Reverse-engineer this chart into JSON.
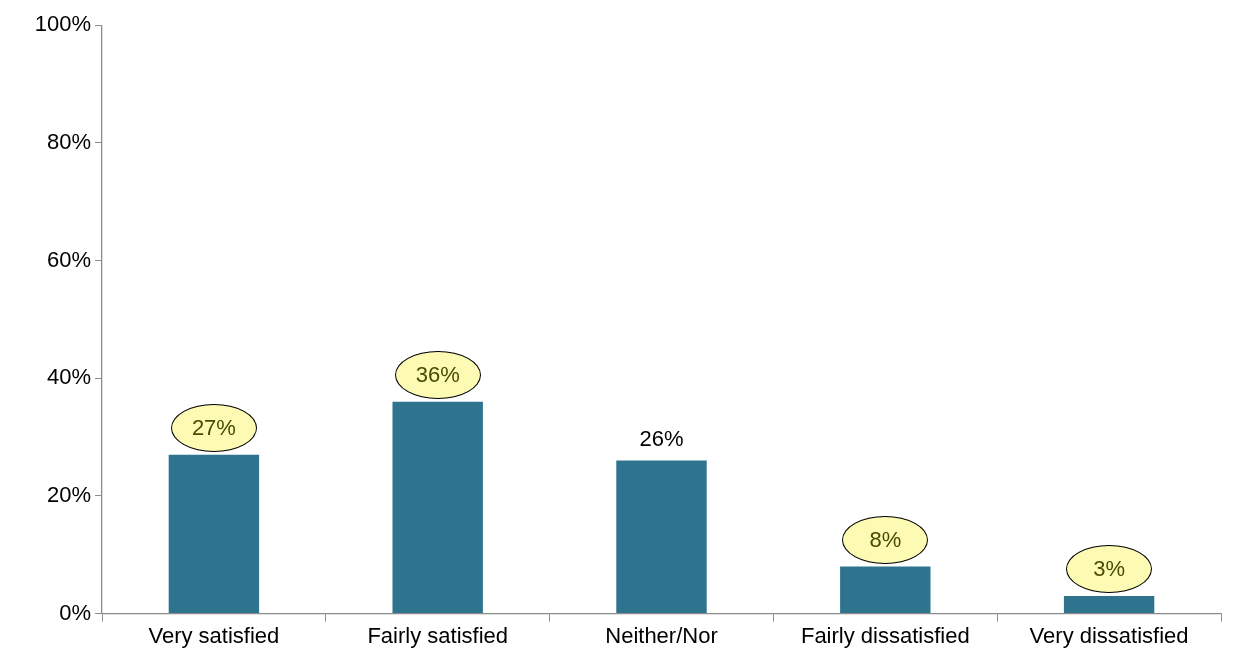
{
  "chart_data": {
    "type": "bar",
    "categories": [
      "Very satisfied",
      "Fairly satisfied",
      "Neither/Nor",
      "Fairly dissatisfied",
      "Very dissatisfied"
    ],
    "values": [
      27,
      36,
      26,
      8,
      3
    ],
    "color": "#2e748e",
    "ylim": [
      0,
      100
    ],
    "yticks": [
      {
        "value": 0,
        "label": "0%"
      },
      {
        "value": 20,
        "label": "20%"
      },
      {
        "value": 40,
        "label": "40%"
      },
      {
        "value": 60,
        "label": "60%"
      },
      {
        "value": 80,
        "label": "80%"
      },
      {
        "value": 100,
        "label": "100%"
      }
    ],
    "value_labels": [
      null,
      null,
      "26%",
      null,
      null
    ],
    "annotations": [
      {
        "text": "27%",
        "x": "Very satisfied",
        "y": 27
      },
      {
        "text": "36%",
        "x": "Fairly satisfied",
        "y": 36
      },
      {
        "text": "8%",
        "x": "Fairly dissatisfied",
        "y": 8
      },
      {
        "text": "3%",
        "x": "Very dissatisfied",
        "y": 3
      }
    ]
  }
}
